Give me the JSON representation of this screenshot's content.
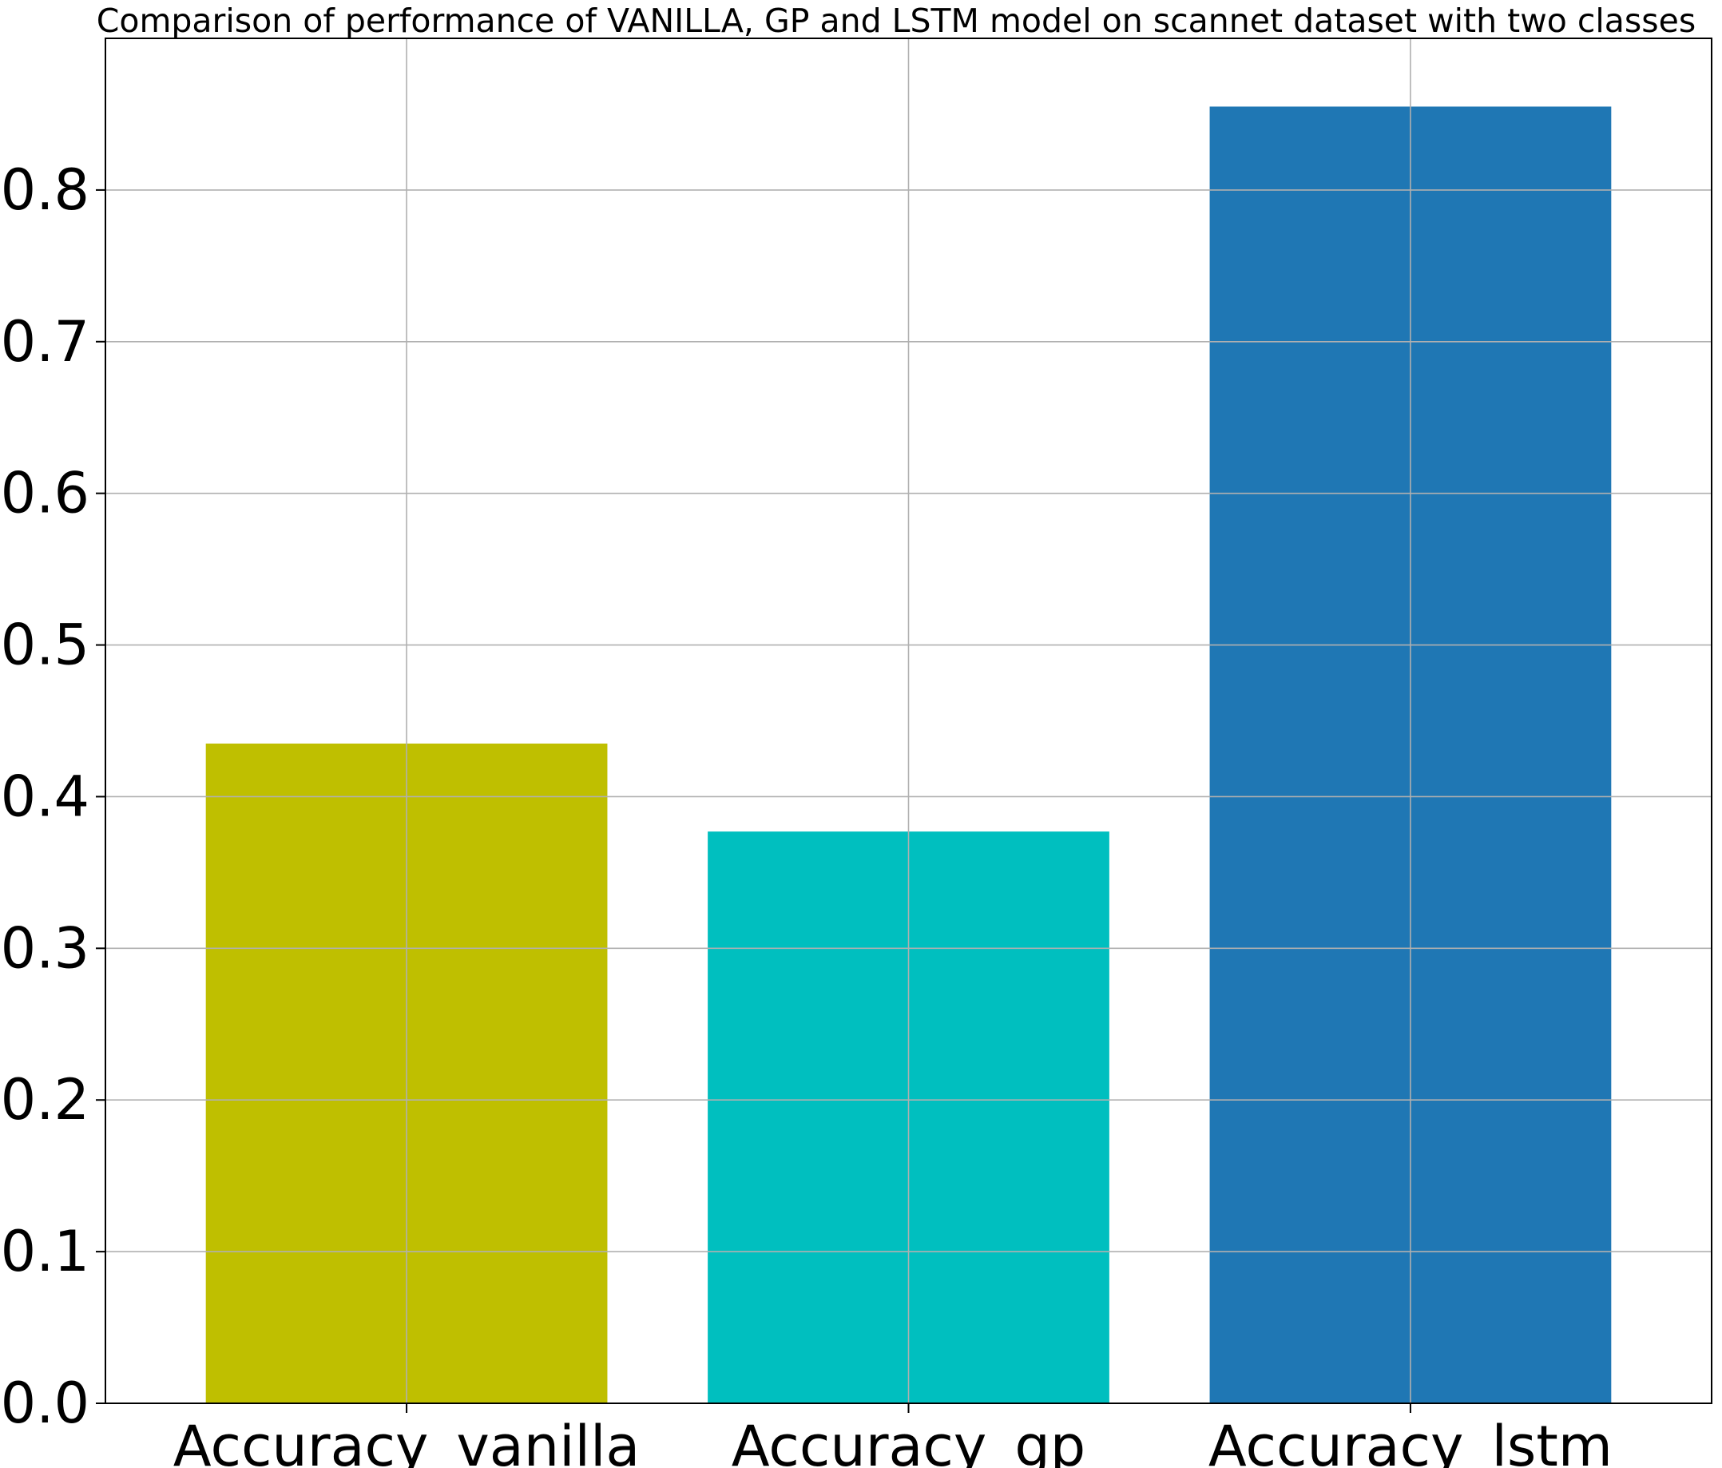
{
  "chart_data": {
    "type": "bar",
    "title": "Comparison of performance of VANILLA, GP and LSTM model on scannet dataset with two classes",
    "xlabel": "",
    "ylabel": "",
    "categories": [
      "Accuracy_vanilla",
      "Accuracy_gp",
      "Accuracy_lstm"
    ],
    "values": [
      0.435,
      0.377,
      0.855
    ],
    "bar_colors": [
      "#bfbf00",
      "#00bfbf",
      "#1f77b4"
    ],
    "ylim": [
      0,
      0.9
    ],
    "yticks": [
      0.0,
      0.1,
      0.2,
      0.3,
      0.4,
      0.5,
      0.6,
      0.7,
      0.8
    ],
    "ytick_labels": [
      "0.0",
      "0.1",
      "0.2",
      "0.3",
      "0.4",
      "0.5",
      "0.6",
      "0.7",
      "0.8"
    ],
    "grid": true,
    "legend": "none"
  }
}
